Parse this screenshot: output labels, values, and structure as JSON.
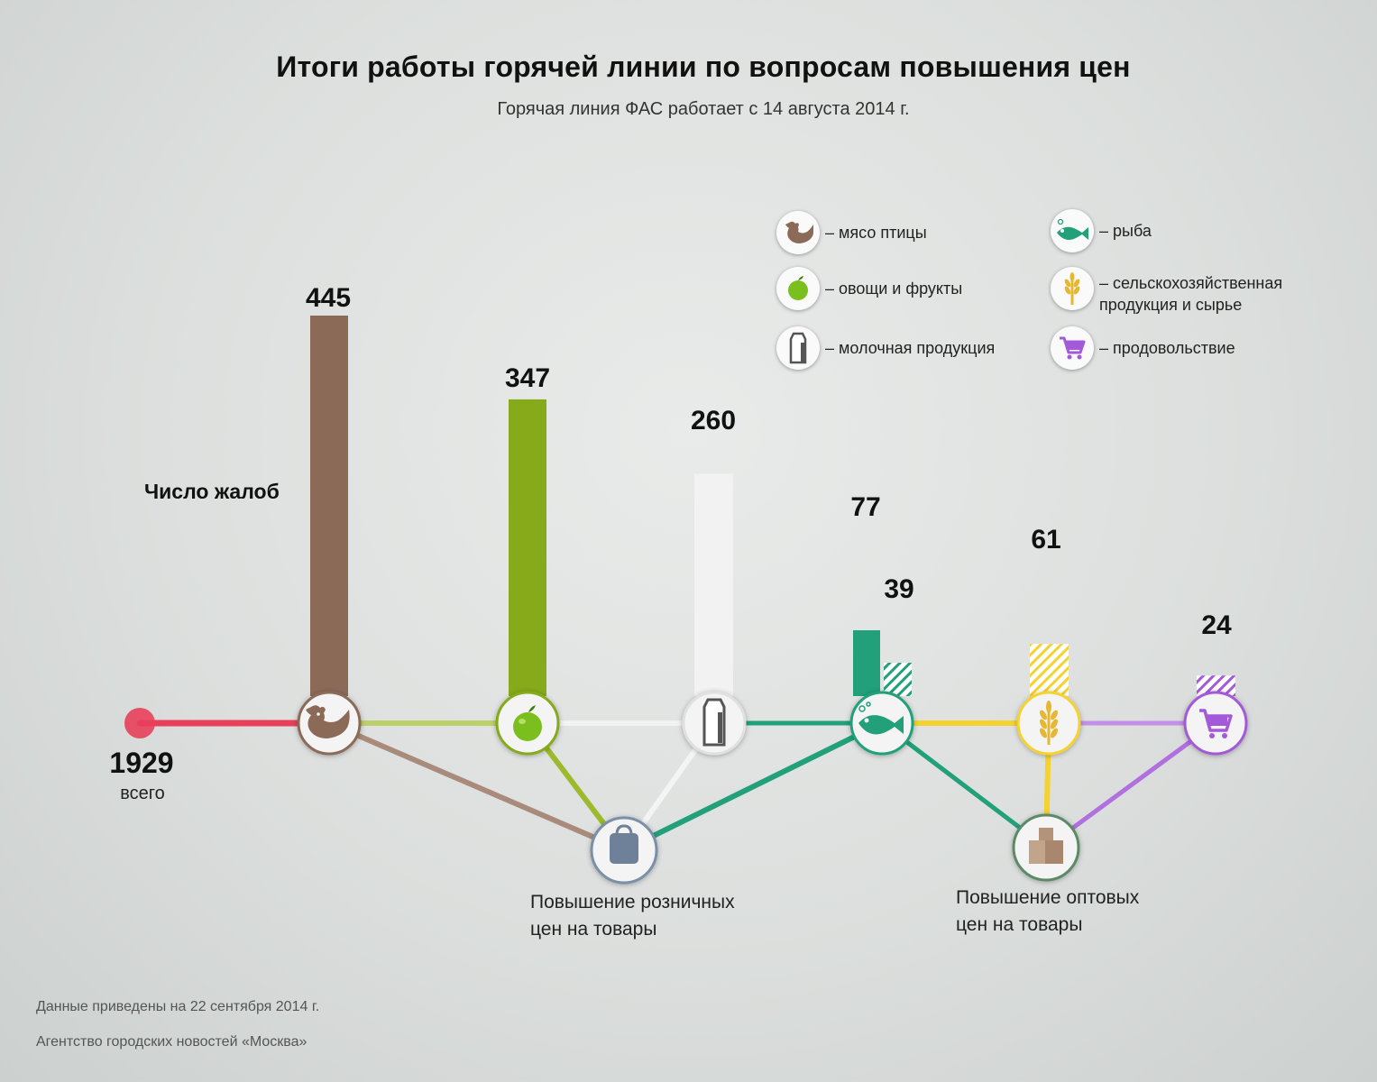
{
  "title": "Итоги работы горячей линии по вопросам повышения цен",
  "subtitle": "Горячая линия ФАС работает с 14 августа 2014 г.",
  "footer": {
    "note": "Данные приведены на 22 сентября 2014 г.",
    "source": "Агентство городских новостей «Москва»"
  },
  "legend": [
    {
      "icon": "chicken-icon",
      "label": "– мясо птицы"
    },
    {
      "icon": "fish-icon",
      "label": "– рыба"
    },
    {
      "icon": "apple-icon",
      "label": "– овощи и фрукты"
    },
    {
      "icon": "wheat-icon",
      "label_line1": "– сельскохозяйственная",
      "label_line2": "продукция и сырье"
    },
    {
      "icon": "milk-carton-icon",
      "label": "– молочная продукция"
    },
    {
      "icon": "cart-icon",
      "label": "– продовольствие"
    }
  ],
  "chart_data": {
    "type": "bar",
    "ylabel": "Число жалоб",
    "total": {
      "value": "1929",
      "label": "всего"
    },
    "categories": [
      "мясо птицы",
      "овощи и фрукты",
      "молочная продукция",
      "рыба",
      "сельскохозяйственная продукция и сырье",
      "продовольствие"
    ],
    "series": [
      {
        "name": "Повышение розничных цен на товары",
        "values": [
          445,
          347,
          260,
          77,
          null,
          null
        ]
      },
      {
        "name": "Повышение оптовых цен на товары",
        "values": [
          null,
          null,
          null,
          39,
          61,
          24
        ]
      }
    ],
    "retail_label_line1": "Повышение розничных",
    "retail_label_line2": "цен на товары",
    "wholesale_label_line1": "Повышение оптовых",
    "wholesale_label_line2": "цен на товары"
  },
  "colors": {
    "total": "#e8405a",
    "poultry": "#8b6a58",
    "vegetables": "#86aa1a",
    "dairy": "#f2f2f2",
    "fish": "#21a07a",
    "agri": "#f5d22e",
    "food": "#a35ad8",
    "retail": "#7a8fa8",
    "wholesale": "#5c8a66"
  }
}
